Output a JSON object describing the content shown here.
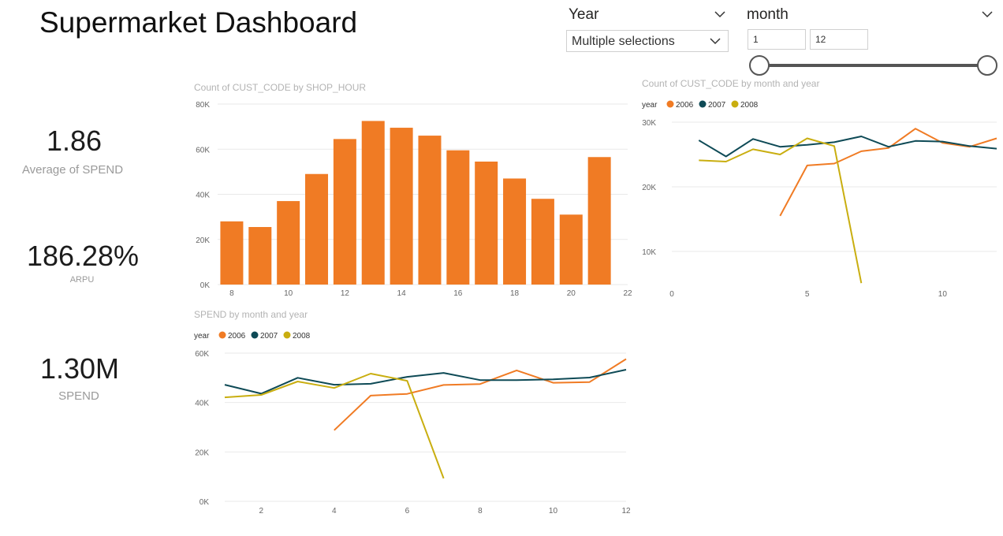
{
  "title": "Supermarket Dashboard",
  "slicers": {
    "year": {
      "label": "Year",
      "value": "Multiple selections"
    },
    "month": {
      "label": "month",
      "min": "1",
      "max": "12",
      "range": [
        1,
        12
      ]
    }
  },
  "kpis": [
    {
      "value": "1.86",
      "label": "Average of SPEND"
    },
    {
      "value": "186.28%",
      "label": "ARPU"
    },
    {
      "value": "1.30M",
      "label": "SPEND"
    }
  ],
  "colors": {
    "accent": "#F07B24",
    "y2006": "#F07B24",
    "y2007": "#0E4A56",
    "y2008": "#C9AE10",
    "grid": "#e9e9e9",
    "axis_text": "#666666"
  },
  "chart_data": [
    {
      "id": "hour_bar",
      "type": "bar",
      "title": "Count of CUST_CODE by SHOP_HOUR",
      "x": [
        8,
        9,
        10,
        11,
        12,
        13,
        14,
        15,
        16,
        17,
        18,
        19,
        20,
        21
      ],
      "values": [
        28000,
        25500,
        37000,
        49000,
        64500,
        72500,
        69500,
        66000,
        59500,
        54500,
        47000,
        38000,
        31000,
        56500
      ],
      "xticks": [
        "8",
        "10",
        "12",
        "14",
        "16",
        "18",
        "20",
        "22"
      ],
      "yticks": [
        "0K",
        "20K",
        "40K",
        "60K",
        "80K"
      ],
      "ylim": [
        0,
        80000
      ],
      "xlim": [
        7.5,
        22
      ],
      "grid": true
    },
    {
      "id": "cust_line",
      "type": "line",
      "title": "Count of CUST_CODE by month and year",
      "legend_title": "year",
      "legend_position": "top-left",
      "yticks": [
        "30K",
        "20K",
        "10K"
      ],
      "ytick_values": [
        30000,
        20000,
        10000
      ],
      "xticks": [
        "0",
        "5",
        "10"
      ],
      "xtick_values": [
        0,
        5,
        10
      ],
      "ylim": [
        5000,
        30000
      ],
      "xlim": [
        0,
        12
      ],
      "grid": true,
      "series": [
        {
          "name": "2006",
          "x": [
            4,
            5,
            6,
            7,
            8,
            9,
            10,
            11,
            12
          ],
          "values": [
            15500,
            23300,
            23600,
            25500,
            26000,
            29000,
            26800,
            26200,
            27500
          ]
        },
        {
          "name": "2007",
          "x": [
            1,
            2,
            3,
            4,
            5,
            6,
            7,
            8,
            9,
            10,
            11,
            12
          ],
          "values": [
            27200,
            24700,
            27400,
            26200,
            26500,
            26900,
            27800,
            26200,
            27100,
            27000,
            26300,
            25900
          ]
        },
        {
          "name": "2008",
          "x": [
            1,
            2,
            3,
            4,
            5,
            6,
            7
          ],
          "values": [
            24100,
            23900,
            25800,
            25000,
            27500,
            26300,
            5100
          ]
        }
      ]
    },
    {
      "id": "spend_line",
      "type": "line",
      "title": "SPEND by month and year",
      "legend_title": "year",
      "legend_position": "top-left",
      "yticks": [
        "0K",
        "20K",
        "40K",
        "60K"
      ],
      "ytick_values": [
        0,
        20000,
        40000,
        60000
      ],
      "xticks": [
        "2",
        "4",
        "6",
        "8",
        "10",
        "12"
      ],
      "xtick_values": [
        2,
        4,
        6,
        8,
        10,
        12
      ],
      "ylim": [
        0,
        60000
      ],
      "xlim": [
        1,
        12
      ],
      "grid": true,
      "series": [
        {
          "name": "2006",
          "x": [
            4,
            5,
            6,
            7,
            8,
            9,
            10,
            11,
            12
          ],
          "values": [
            28800,
            42800,
            43500,
            47100,
            47500,
            53000,
            48000,
            48300,
            57600
          ]
        },
        {
          "name": "2007",
          "x": [
            1,
            2,
            3,
            4,
            5,
            6,
            7,
            8,
            9,
            10,
            11,
            12
          ],
          "values": [
            47200,
            43600,
            50000,
            47200,
            47600,
            50400,
            52000,
            49100,
            49100,
            49400,
            50100,
            53300
          ]
        },
        {
          "name": "2008",
          "x": [
            1,
            2,
            3,
            4,
            5,
            6,
            7
          ],
          "values": [
            42100,
            43100,
            48500,
            45900,
            51700,
            48800,
            9300
          ]
        }
      ]
    }
  ]
}
